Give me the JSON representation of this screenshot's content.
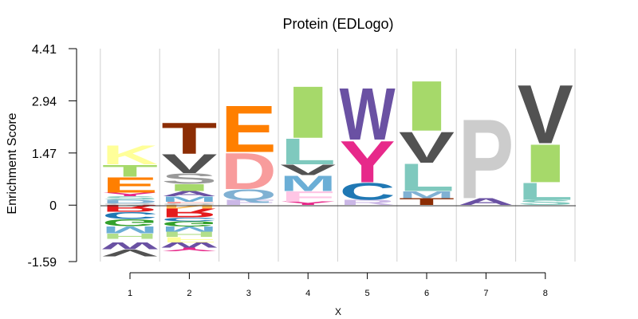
{
  "chart_data": {
    "type": "sequence-logo",
    "title": "Protein (EDLogo)",
    "xlabel": "X",
    "ylabel": "Enrichment Score",
    "x_ticks": [
      "1",
      "2",
      "3",
      "4",
      "5",
      "6",
      "7",
      "8"
    ],
    "y_ticks": [
      "-1.59",
      "0",
      "1.47",
      "2.94",
      "4.41"
    ],
    "ylim": [
      -1.59,
      4.41
    ],
    "grid": "vertical separators between positions",
    "positions": [
      {
        "position": 1,
        "positive": [
          {
            "letter": "Q",
            "value": 0.05,
            "color": "#B3B3B3"
          },
          {
            "letter": "D",
            "value": 0.1,
            "color": "#80B1D3"
          },
          {
            "letter": "S",
            "value": 0.1,
            "color": "#7FC9BE"
          },
          {
            "letter": "Y",
            "value": 0.1,
            "color": "#E7298A"
          },
          {
            "letter": "E",
            "value": 0.45,
            "color": "#FF7F00"
          },
          {
            "letter": "T",
            "value": 0.35,
            "color": "#A6D96A"
          },
          {
            "letter": "K",
            "value": 0.55,
            "color": "#FFFF99"
          }
        ],
        "negative": [
          {
            "letter": "R",
            "value": 0.2,
            "color": "#E41A1C"
          },
          {
            "letter": "C",
            "value": 0.2,
            "color": "#1F78B4"
          },
          {
            "letter": "G",
            "value": 0.2,
            "color": "#33A02C"
          },
          {
            "letter": "M",
            "value": 0.2,
            "color": "#6BAED6"
          },
          {
            "letter": "H",
            "value": 0.15,
            "color": "#B2DF8A"
          },
          {
            "letter": "I",
            "value": 0.1,
            "color": "#FFFFFF"
          },
          {
            "letter": "W",
            "value": 0.2,
            "color": "#6A51A3"
          },
          {
            "letter": "V",
            "value": 0.2,
            "color": "#525252"
          }
        ]
      },
      {
        "position": 2,
        "positive": [
          {
            "letter": "Q",
            "value": 0.05,
            "color": "#B3B3B3"
          },
          {
            "letter": "F",
            "value": 0.05,
            "color": "#FB9A99"
          },
          {
            "letter": "M",
            "value": 0.15,
            "color": "#6BAED6"
          },
          {
            "letter": "A",
            "value": 0.15,
            "color": "#6A51A3"
          },
          {
            "letter": "I",
            "value": 0.2,
            "color": "#A6D96A"
          },
          {
            "letter": "S",
            "value": 0.3,
            "color": "#999999"
          },
          {
            "letter": "V",
            "value": 0.55,
            "color": "#525252"
          },
          {
            "letter": "T",
            "value": 0.9,
            "color": "#8C2D04"
          }
        ],
        "negative": [
          {
            "letter": "N",
            "value": 0.1,
            "color": "#FFB74D"
          },
          {
            "letter": "R",
            "value": 0.25,
            "color": "#E41A1C"
          },
          {
            "letter": "C",
            "value": 0.1,
            "color": "#1F78B4"
          },
          {
            "letter": "G",
            "value": 0.15,
            "color": "#33A02C"
          },
          {
            "letter": "M",
            "value": 0.15,
            "color": "#6BAED6"
          },
          {
            "letter": "H",
            "value": 0.15,
            "color": "#B2DF8A"
          },
          {
            "letter": "F",
            "value": 0.15,
            "color": "#FFFF99"
          },
          {
            "letter": "W",
            "value": 0.15,
            "color": "#6A51A3"
          },
          {
            "letter": "Y",
            "value": 0.1,
            "color": "#E7298A"
          }
        ]
      },
      {
        "position": 3,
        "positive": [
          {
            "letter": "F",
            "value": 0.15,
            "color": "#CBB7E6"
          },
          {
            "letter": "Q",
            "value": 0.3,
            "color": "#80B1D3"
          },
          {
            "letter": "D",
            "value": 1.05,
            "color": "#F89C9C"
          },
          {
            "letter": "E",
            "value": 1.35,
            "color": "#FF7F00"
          }
        ],
        "negative": []
      },
      {
        "position": 4,
        "positive": [
          {
            "letter": "Y",
            "value": 0.1,
            "color": "#E7298A"
          },
          {
            "letter": "F",
            "value": 0.3,
            "color": "#FFC6E5"
          },
          {
            "letter": "M",
            "value": 0.45,
            "color": "#6BAED6"
          },
          {
            "letter": "V",
            "value": 0.3,
            "color": "#525252"
          },
          {
            "letter": "L",
            "value": 0.75,
            "color": "#7FC9BE"
          },
          {
            "letter": "I",
            "value": 1.5,
            "color": "#A6D96A"
          }
        ],
        "negative": []
      },
      {
        "position": 5,
        "positive": [
          {
            "letter": "R",
            "value": 0.15,
            "color": "#CBB7E6"
          },
          {
            "letter": "C",
            "value": 0.5,
            "color": "#1F78B4"
          },
          {
            "letter": "Y",
            "value": 1.2,
            "color": "#E7298A"
          },
          {
            "letter": "W",
            "value": 1.5,
            "color": "#6A51A3"
          }
        ],
        "negative": []
      },
      {
        "position": 6,
        "positive": [
          {
            "letter": "T",
            "value": 0.2,
            "color": "#8C2D04"
          },
          {
            "letter": "M",
            "value": 0.2,
            "color": "#80B1D3"
          },
          {
            "letter": "L",
            "value": 0.8,
            "color": "#7FC9BE"
          },
          {
            "letter": "V",
            "value": 0.9,
            "color": "#525252"
          },
          {
            "letter": "I",
            "value": 1.45,
            "color": "#A6D96A"
          }
        ],
        "negative": []
      },
      {
        "position": 7,
        "positive": [
          {
            "letter": "A",
            "value": 0.2,
            "color": "#6A51A3"
          },
          {
            "letter": "P",
            "value": 2.3,
            "color": "#CCCCCC"
          }
        ],
        "negative": []
      },
      {
        "position": 8,
        "positive": [
          {
            "letter": "S",
            "value": 0.15,
            "color": "#7FC9BE"
          },
          {
            "letter": "L",
            "value": 0.5,
            "color": "#7FC9BE"
          },
          {
            "letter": "I",
            "value": 1.1,
            "color": "#A6D96A"
          },
          {
            "letter": "V",
            "value": 1.7,
            "color": "#525252"
          }
        ],
        "negative": []
      }
    ]
  }
}
